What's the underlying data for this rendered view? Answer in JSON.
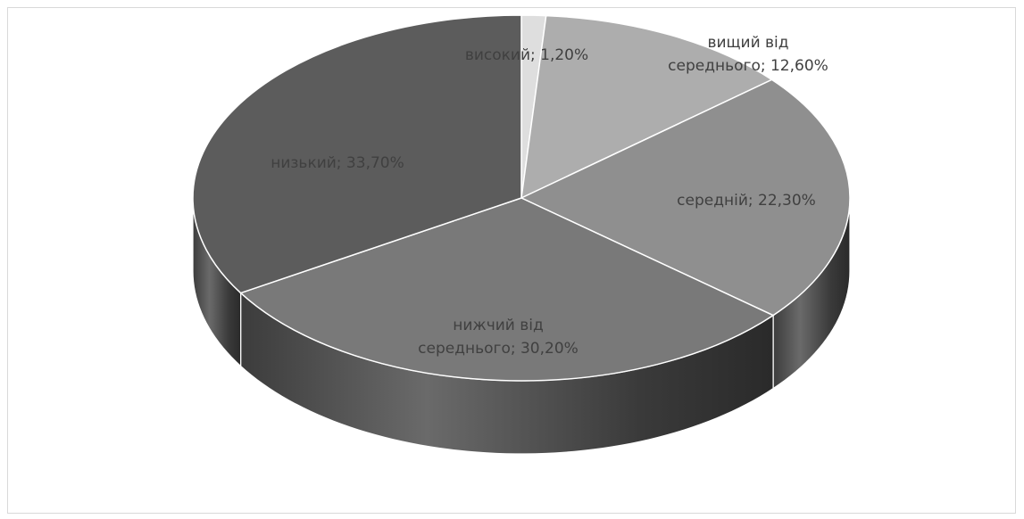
{
  "chart_data": {
    "type": "pie",
    "style": "3d",
    "title": "",
    "categories": [
      "високий",
      "вищий від середнього",
      "середній",
      "нижчий від середнього",
      "низький"
    ],
    "values": [
      1.2,
      12.6,
      22.3,
      30.2,
      33.7
    ],
    "unit": "%",
    "labels": [
      {
        "lines": [
          "високий; 1,20%"
        ],
        "color": "#404040"
      },
      {
        "lines": [
          "вищий від",
          "середнього; 12,60%"
        ],
        "color": "#404040"
      },
      {
        "lines": [
          "середній; 22,30%"
        ],
        "color": "#404040"
      },
      {
        "lines": [
          "нижчий від",
          "середнього; 30,20%"
        ],
        "color": "#404040"
      },
      {
        "lines": [
          "низький; 33,70%"
        ],
        "color": "#404040"
      }
    ],
    "colors": [
      "#dedede",
      "#adadad",
      "#8f8f8f",
      "#797979",
      "#5c5c5c"
    ],
    "side_colors": [
      "#6a6a6a",
      "#5a5a5a",
      "#474747",
      "#3a3a3a",
      "#2f2f2f"
    ],
    "legend": "none"
  }
}
